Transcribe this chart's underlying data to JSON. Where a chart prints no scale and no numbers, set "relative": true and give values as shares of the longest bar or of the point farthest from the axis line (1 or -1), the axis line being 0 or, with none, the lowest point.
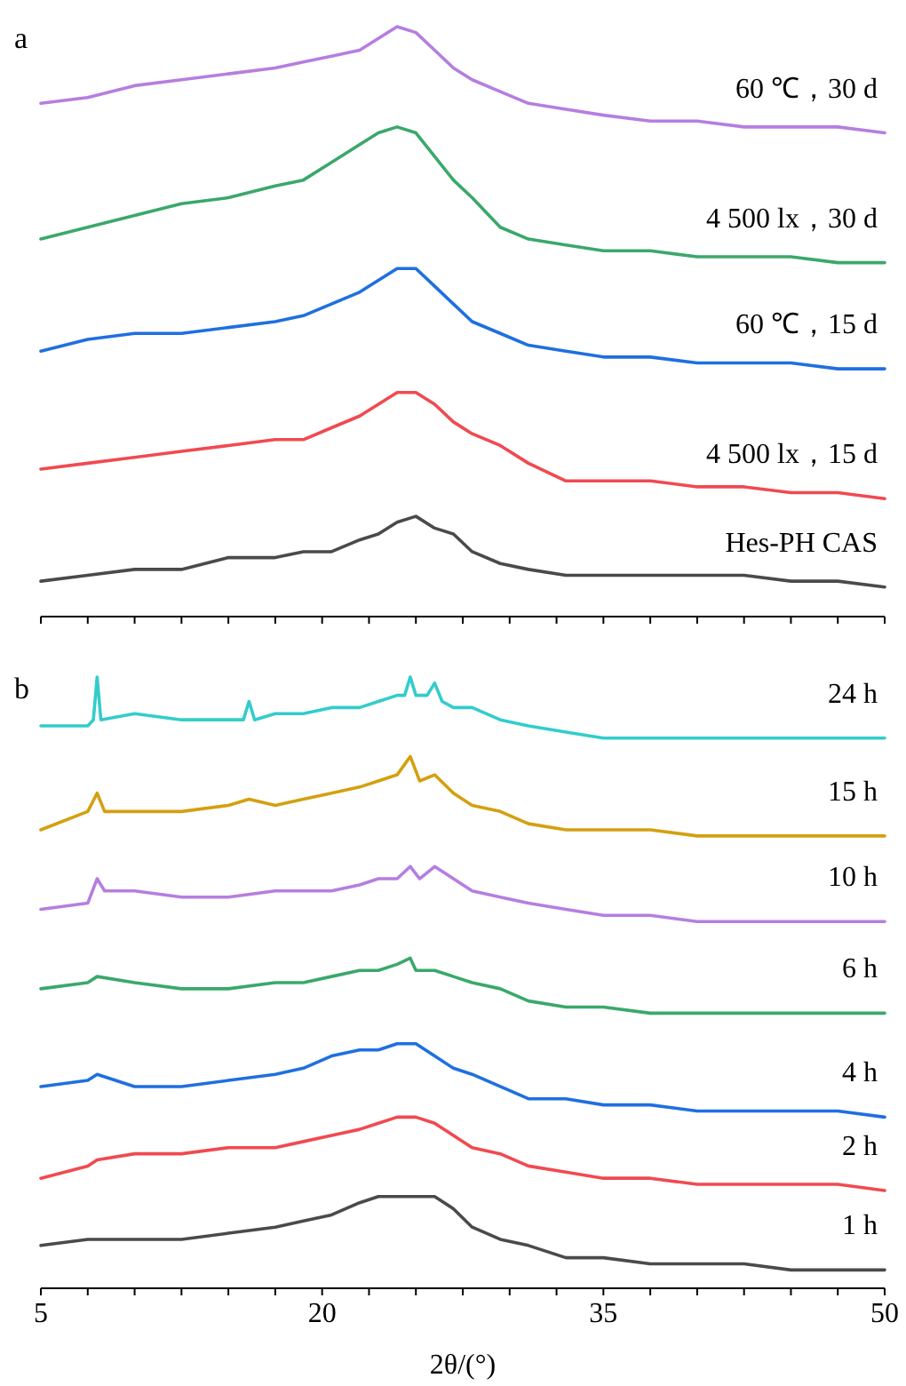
{
  "chart_data": [
    {
      "type": "line",
      "relative": true,
      "annotations": [
        "a"
      ],
      "tick_labels": false,
      "xlim": [
        5,
        50
      ],
      "xticks": [
        5,
        {
          "value": 7.5,
          "label": null
        },
        {
          "value": 10,
          "label": null
        },
        {
          "value": 12.5,
          "label": null
        },
        {
          "value": 15,
          "label": null
        },
        {
          "value": 17.5,
          "label": null
        },
        20,
        {
          "value": 22.5,
          "label": null
        },
        {
          "value": 25,
          "label": null
        },
        {
          "value": 27.5,
          "label": null
        },
        {
          "value": 30,
          "label": null
        },
        {
          "value": 32.5,
          "label": null
        },
        35,
        {
          "value": 37.5,
          "label": null
        },
        {
          "value": 40,
          "label": null
        },
        {
          "value": 42.5,
          "label": null
        },
        {
          "value": 45,
          "label": null
        },
        {
          "value": 47.5,
          "label": null
        },
        50
      ],
      "x": [
        5,
        7.5,
        10,
        12.5,
        15,
        17.5,
        19,
        20.5,
        22,
        23,
        24,
        25,
        26,
        27,
        28,
        29.5,
        31,
        33,
        35,
        37.5,
        40,
        42.5,
        45,
        47.5,
        50
      ],
      "series": [
        {
          "name": "60 ℃，30 d",
          "color": "#b57ee0",
          "values": [
            0.87,
            0.88,
            0.9,
            0.91,
            0.92,
            0.93,
            0.94,
            0.95,
            0.96,
            0.98,
            1.0,
            0.99,
            0.96,
            0.93,
            0.91,
            0.89,
            0.87,
            0.86,
            0.85,
            0.84,
            0.84,
            0.83,
            0.83,
            0.83,
            0.82
          ]
        },
        {
          "name": "4 500 lx，30 d",
          "color": "#3aa86b",
          "values": [
            0.64,
            0.66,
            0.68,
            0.7,
            0.71,
            0.73,
            0.74,
            0.77,
            0.8,
            0.82,
            0.83,
            0.82,
            0.78,
            0.74,
            0.71,
            0.66,
            0.64,
            0.63,
            0.62,
            0.62,
            0.61,
            0.61,
            0.61,
            0.6,
            0.6
          ]
        },
        {
          "name": "60 ℃，15 d",
          "color": "#1f6fe0",
          "values": [
            0.45,
            0.47,
            0.48,
            0.48,
            0.49,
            0.5,
            0.51,
            0.53,
            0.55,
            0.57,
            0.59,
            0.59,
            0.56,
            0.53,
            0.5,
            0.48,
            0.46,
            0.45,
            0.44,
            0.44,
            0.43,
            0.43,
            0.43,
            0.42,
            0.42
          ]
        },
        {
          "name": "4 500 lx，15 d",
          "color": "#f04a50",
          "values": [
            0.25,
            0.26,
            0.27,
            0.28,
            0.29,
            0.3,
            0.3,
            0.32,
            0.34,
            0.36,
            0.38,
            0.38,
            0.36,
            0.33,
            0.31,
            0.29,
            0.26,
            0.23,
            0.23,
            0.23,
            0.22,
            0.22,
            0.21,
            0.21,
            0.2
          ]
        },
        {
          "name": "Hes-PH CAS",
          "color": "#4a4a4a",
          "values": [
            0.06,
            0.07,
            0.08,
            0.08,
            0.1,
            0.1,
            0.11,
            0.11,
            0.13,
            0.14,
            0.16,
            0.17,
            0.15,
            0.14,
            0.11,
            0.09,
            0.08,
            0.07,
            0.07,
            0.07,
            0.07,
            0.07,
            0.06,
            0.06,
            0.05
          ]
        }
      ]
    },
    {
      "type": "line",
      "relative": true,
      "annotations": [
        "b"
      ],
      "tick_labels": "x",
      "xlabel": "2θ/(°)",
      "xlim": [
        5,
        50
      ],
      "xticks": [
        5,
        {
          "value": 7.5,
          "label": null
        },
        {
          "value": 10,
          "label": null
        },
        {
          "value": 12.5,
          "label": null
        },
        {
          "value": 15,
          "label": null
        },
        {
          "value": 17.5,
          "label": null
        },
        20,
        {
          "value": 22.5,
          "label": null
        },
        {
          "value": 25,
          "label": null
        },
        {
          "value": 27.5,
          "label": null
        },
        {
          "value": 30,
          "label": null
        },
        {
          "value": 32.5,
          "label": null
        },
        35,
        {
          "value": 37.5,
          "label": null
        },
        {
          "value": 40,
          "label": null
        },
        {
          "value": 42.5,
          "label": null
        },
        {
          "value": 45,
          "label": null
        },
        {
          "value": 47.5,
          "label": null
        },
        50
      ],
      "series": [
        {
          "name": "24 h",
          "color": "#33cccc",
          "x": [
            5,
            7.5,
            7.8,
            8.0,
            8.2,
            10,
            12.5,
            15,
            15.8,
            16.1,
            16.4,
            17.5,
            19,
            20.5,
            22,
            23,
            24,
            24.4,
            24.7,
            25.0,
            25.6,
            26.0,
            26.4,
            27,
            28,
            29.5,
            31,
            33,
            35,
            37.5,
            40,
            42.5,
            45,
            47.5,
            50
          ],
          "values": [
            0.92,
            0.92,
            0.93,
            1.0,
            0.93,
            0.94,
            0.93,
            0.93,
            0.93,
            0.96,
            0.93,
            0.94,
            0.94,
            0.95,
            0.95,
            0.96,
            0.97,
            0.97,
            1.0,
            0.97,
            0.97,
            0.99,
            0.96,
            0.95,
            0.95,
            0.93,
            0.92,
            0.91,
            0.9,
            0.9,
            0.9,
            0.9,
            0.9,
            0.9,
            0.9
          ]
        },
        {
          "name": "15 h",
          "color": "#d4a010",
          "x": [
            5,
            7.5,
            8.0,
            8.4,
            10,
            12.5,
            15,
            16.1,
            17.5,
            19,
            20.5,
            22,
            23,
            24,
            24.7,
            25.2,
            26.0,
            27,
            28,
            29.5,
            31,
            33,
            35,
            37.5,
            40,
            42.5,
            45,
            47.5,
            50
          ],
          "values": [
            0.75,
            0.78,
            0.81,
            0.78,
            0.78,
            0.78,
            0.79,
            0.8,
            0.79,
            0.8,
            0.81,
            0.82,
            0.83,
            0.84,
            0.87,
            0.83,
            0.84,
            0.81,
            0.79,
            0.78,
            0.76,
            0.75,
            0.75,
            0.75,
            0.74,
            0.74,
            0.74,
            0.74,
            0.74
          ]
        },
        {
          "name": "10 h",
          "color": "#b57ee0",
          "x": [
            5,
            7.5,
            8.0,
            8.4,
            10,
            12.5,
            15,
            17.5,
            19,
            20.5,
            22,
            23,
            24,
            24.7,
            25.2,
            26.0,
            27,
            28,
            29.5,
            31,
            33,
            35,
            37.5,
            40,
            42.5,
            45,
            47.5,
            50
          ],
          "values": [
            0.62,
            0.63,
            0.67,
            0.65,
            0.65,
            0.64,
            0.64,
            0.65,
            0.65,
            0.65,
            0.66,
            0.67,
            0.67,
            0.69,
            0.67,
            0.69,
            0.67,
            0.65,
            0.64,
            0.63,
            0.62,
            0.61,
            0.61,
            0.6,
            0.6,
            0.6,
            0.6,
            0.6
          ]
        },
        {
          "name": "6 h",
          "color": "#3aa86b",
          "x": [
            5,
            7.5,
            8.0,
            10,
            12.5,
            15,
            17.5,
            19,
            20.5,
            22,
            23,
            24,
            24.7,
            25,
            26,
            27,
            28,
            29.5,
            31,
            33,
            35,
            37.5,
            40,
            42.5,
            45,
            47.5,
            50
          ],
          "values": [
            0.49,
            0.5,
            0.51,
            0.5,
            0.49,
            0.49,
            0.5,
            0.5,
            0.51,
            0.52,
            0.52,
            0.53,
            0.54,
            0.52,
            0.52,
            0.51,
            0.5,
            0.49,
            0.47,
            0.46,
            0.46,
            0.45,
            0.45,
            0.45,
            0.45,
            0.45,
            0.45
          ]
        },
        {
          "name": "4 h",
          "color": "#1f6fe0",
          "x": [
            5,
            7.5,
            8.0,
            10,
            12.5,
            15,
            17.5,
            19,
            20.5,
            22,
            23,
            24,
            25,
            26,
            27,
            28,
            29.5,
            31,
            33,
            35,
            37.5,
            40,
            42.5,
            45,
            47.5,
            50
          ],
          "values": [
            0.33,
            0.34,
            0.35,
            0.33,
            0.33,
            0.34,
            0.35,
            0.36,
            0.38,
            0.39,
            0.39,
            0.4,
            0.4,
            0.38,
            0.36,
            0.35,
            0.33,
            0.31,
            0.31,
            0.3,
            0.3,
            0.29,
            0.29,
            0.29,
            0.29,
            0.28
          ]
        },
        {
          "name": "2 h",
          "color": "#f04a50",
          "x": [
            5,
            7.5,
            8.0,
            10,
            12.5,
            15,
            17.5,
            19,
            20.5,
            22,
            23,
            24,
            25,
            26,
            27,
            28,
            29.5,
            31,
            33,
            35,
            37.5,
            40,
            42.5,
            45,
            47.5,
            50
          ],
          "values": [
            0.18,
            0.2,
            0.21,
            0.22,
            0.22,
            0.23,
            0.23,
            0.24,
            0.25,
            0.26,
            0.27,
            0.28,
            0.28,
            0.27,
            0.25,
            0.23,
            0.22,
            0.2,
            0.19,
            0.18,
            0.18,
            0.17,
            0.17,
            0.17,
            0.17,
            0.16
          ]
        },
        {
          "name": "1 h",
          "color": "#4a4a4a",
          "x": [
            5,
            7.5,
            8.0,
            10,
            12.5,
            15,
            17.5,
            19,
            20.5,
            22,
            23,
            24,
            25,
            26,
            27,
            28,
            29.5,
            31,
            33,
            35,
            37.5,
            40,
            42.5,
            45,
            47.5,
            50
          ],
          "values": [
            0.07,
            0.08,
            0.08,
            0.08,
            0.08,
            0.09,
            0.1,
            0.11,
            0.12,
            0.14,
            0.15,
            0.15,
            0.15,
            0.15,
            0.13,
            0.1,
            0.08,
            0.07,
            0.05,
            0.05,
            0.04,
            0.04,
            0.04,
            0.03,
            0.03,
            0.03
          ]
        }
      ]
    }
  ]
}
